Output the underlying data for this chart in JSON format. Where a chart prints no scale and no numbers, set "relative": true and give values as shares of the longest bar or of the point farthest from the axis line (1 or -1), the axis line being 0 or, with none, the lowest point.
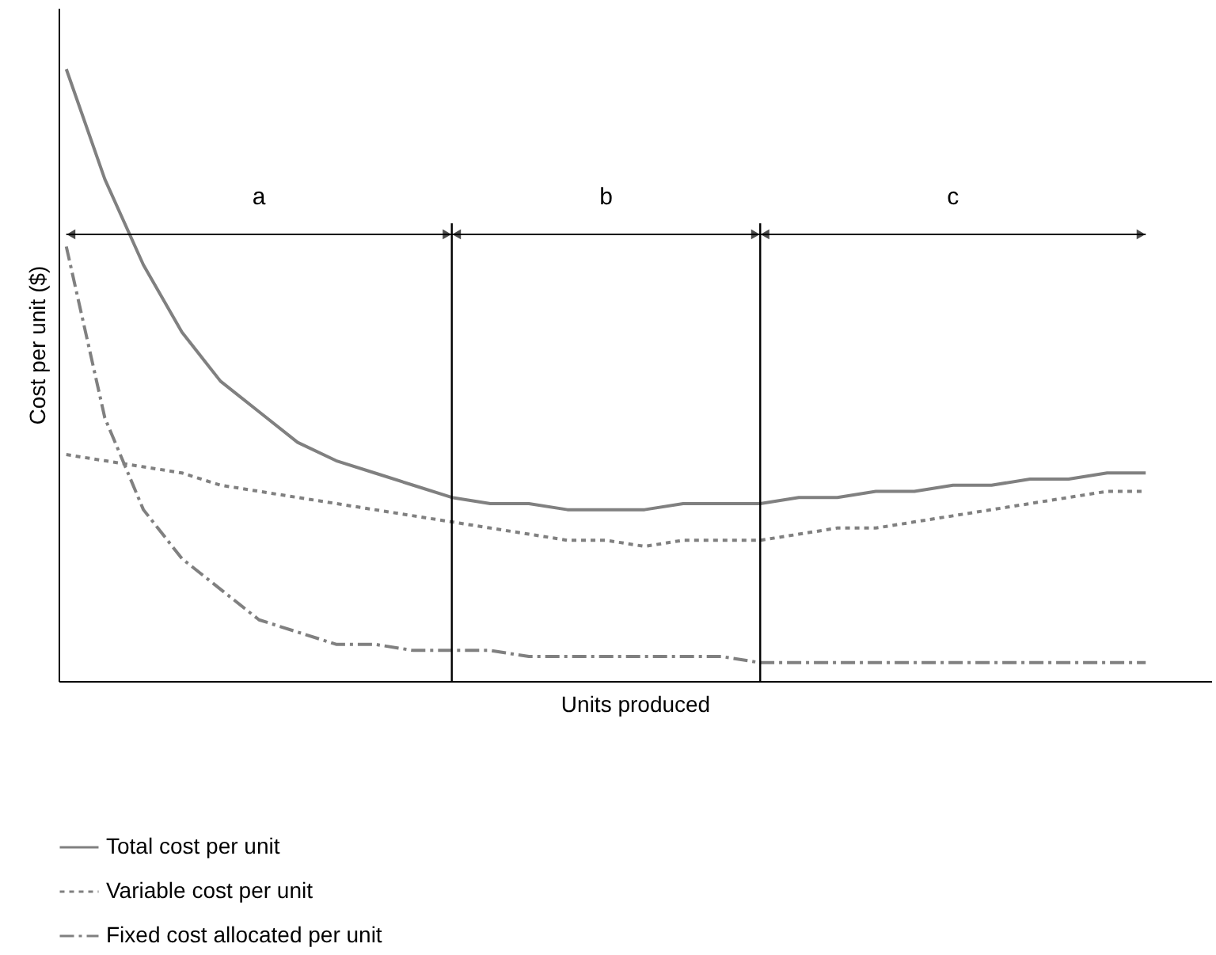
{
  "chart_data": {
    "type": "line",
    "relative": true,
    "xlabel": "Units produced",
    "ylabel": "Cost per unit ($)",
    "tick_labels": false,
    "legend": "bottom",
    "marker": "none",
    "categories": [
      null,
      null,
      null,
      null,
      null,
      null,
      null,
      null,
      null,
      null,
      null,
      null,
      null,
      null,
      null,
      null,
      null,
      null,
      null,
      null,
      null,
      null,
      null,
      null,
      null,
      null,
      null,
      null,
      null
    ],
    "series": [
      {
        "name": "Total cost per unit",
        "color": "#808080",
        "line_style": "solid",
        "values": [
          1.0,
          0.82,
          0.68,
          0.57,
          0.49,
          0.44,
          0.39,
          0.36,
          0.34,
          0.32,
          0.3,
          0.29,
          0.29,
          0.28,
          0.28,
          0.28,
          0.29,
          0.29,
          0.29,
          0.3,
          0.3,
          0.31,
          0.31,
          0.32,
          0.32,
          0.33,
          0.33,
          0.34,
          0.34
        ]
      },
      {
        "name": "Variable cost per unit",
        "color": "#808080",
        "line_style": "dotted",
        "values": [
          0.37,
          0.36,
          0.35,
          0.34,
          0.32,
          0.31,
          0.3,
          0.29,
          0.28,
          0.27,
          0.26,
          0.25,
          0.24,
          0.23,
          0.23,
          0.22,
          0.23,
          0.23,
          0.23,
          0.24,
          0.25,
          0.25,
          0.26,
          0.27,
          0.28,
          0.29,
          0.3,
          0.31,
          0.31
        ]
      },
      {
        "name": "Fixed cost allocated per unit",
        "color": "#808080",
        "line_style": "dashed",
        "values": [
          0.71,
          0.43,
          0.28,
          0.2,
          0.15,
          0.1,
          0.08,
          0.06,
          0.06,
          0.05,
          0.05,
          0.05,
          0.04,
          0.04,
          0.04,
          0.04,
          0.04,
          0.04,
          0.03,
          0.03,
          0.03,
          0.03,
          0.03,
          0.03,
          0.03,
          0.03,
          0.03,
          0.03,
          0.03
        ]
      }
    ],
    "annotations": [
      "a",
      "b",
      "c"
    ]
  }
}
